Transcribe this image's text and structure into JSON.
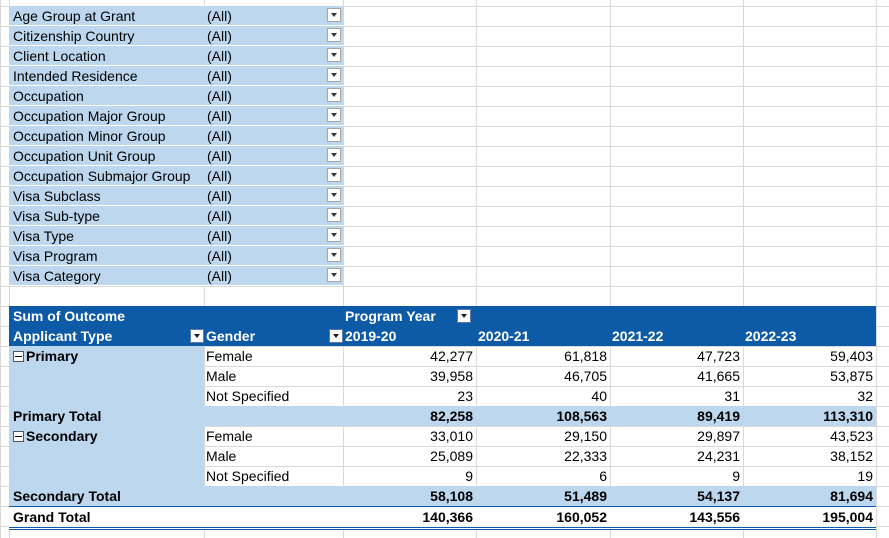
{
  "filters": [
    {
      "label": "Age Group at Grant",
      "value": "(All)"
    },
    {
      "label": "Citizenship Country",
      "value": "(All)"
    },
    {
      "label": "Client Location",
      "value": "(All)"
    },
    {
      "label": "Intended Residence",
      "value": "(All)"
    },
    {
      "label": "Occupation",
      "value": "(All)"
    },
    {
      "label": "Occupation Major Group",
      "value": "(All)"
    },
    {
      "label": "Occupation Minor Group",
      "value": "(All)"
    },
    {
      "label": "Occupation Unit Group",
      "value": "(All)"
    },
    {
      "label": "Occupation Submajor Group",
      "value": "(All)"
    },
    {
      "label": "Visa Subclass",
      "value": "(All)"
    },
    {
      "label": "Visa Sub-type",
      "value": "(All)"
    },
    {
      "label": "Visa Type",
      "value": "(All)"
    },
    {
      "label": "Visa Program",
      "value": "(All)"
    },
    {
      "label": "Visa Category",
      "value": "(All)"
    }
  ],
  "pivot": {
    "measure_label": "Sum of Outcome",
    "column_field": "Program Year",
    "row_field_1": "Applicant Type",
    "row_field_2": "Gender",
    "years": [
      "2019-20",
      "2020-21",
      "2021-22",
      "2022-23"
    ],
    "primary": {
      "label": "Primary",
      "rows": [
        {
          "gender": "Female",
          "values": [
            "42,277",
            "61,818",
            "47,723",
            "59,403"
          ]
        },
        {
          "gender": "Male",
          "values": [
            "39,958",
            "46,705",
            "41,665",
            "53,875"
          ]
        },
        {
          "gender": "Not Specified",
          "values": [
            "23",
            "40",
            "31",
            "32"
          ]
        }
      ],
      "total_label": "Primary Total",
      "total": [
        "82,258",
        "108,563",
        "89,419",
        "113,310"
      ]
    },
    "secondary": {
      "label": "Secondary",
      "rows": [
        {
          "gender": "Female",
          "values": [
            "33,010",
            "29,150",
            "29,897",
            "43,523"
          ]
        },
        {
          "gender": "Male",
          "values": [
            "25,089",
            "22,333",
            "24,231",
            "38,152"
          ]
        },
        {
          "gender": "Not Specified",
          "values": [
            "9",
            "6",
            "9",
            "19"
          ]
        }
      ],
      "total_label": "Secondary Total",
      "total": [
        "58,108",
        "51,489",
        "54,137",
        "81,694"
      ]
    },
    "grand_total_label": "Grand Total",
    "grand_total": [
      "140,366",
      "160,052",
      "143,556",
      "195,004"
    ]
  },
  "colors": {
    "header": "#0d5aa7",
    "light": "#bdd7ee",
    "gridline": "#d9d9d9"
  }
}
